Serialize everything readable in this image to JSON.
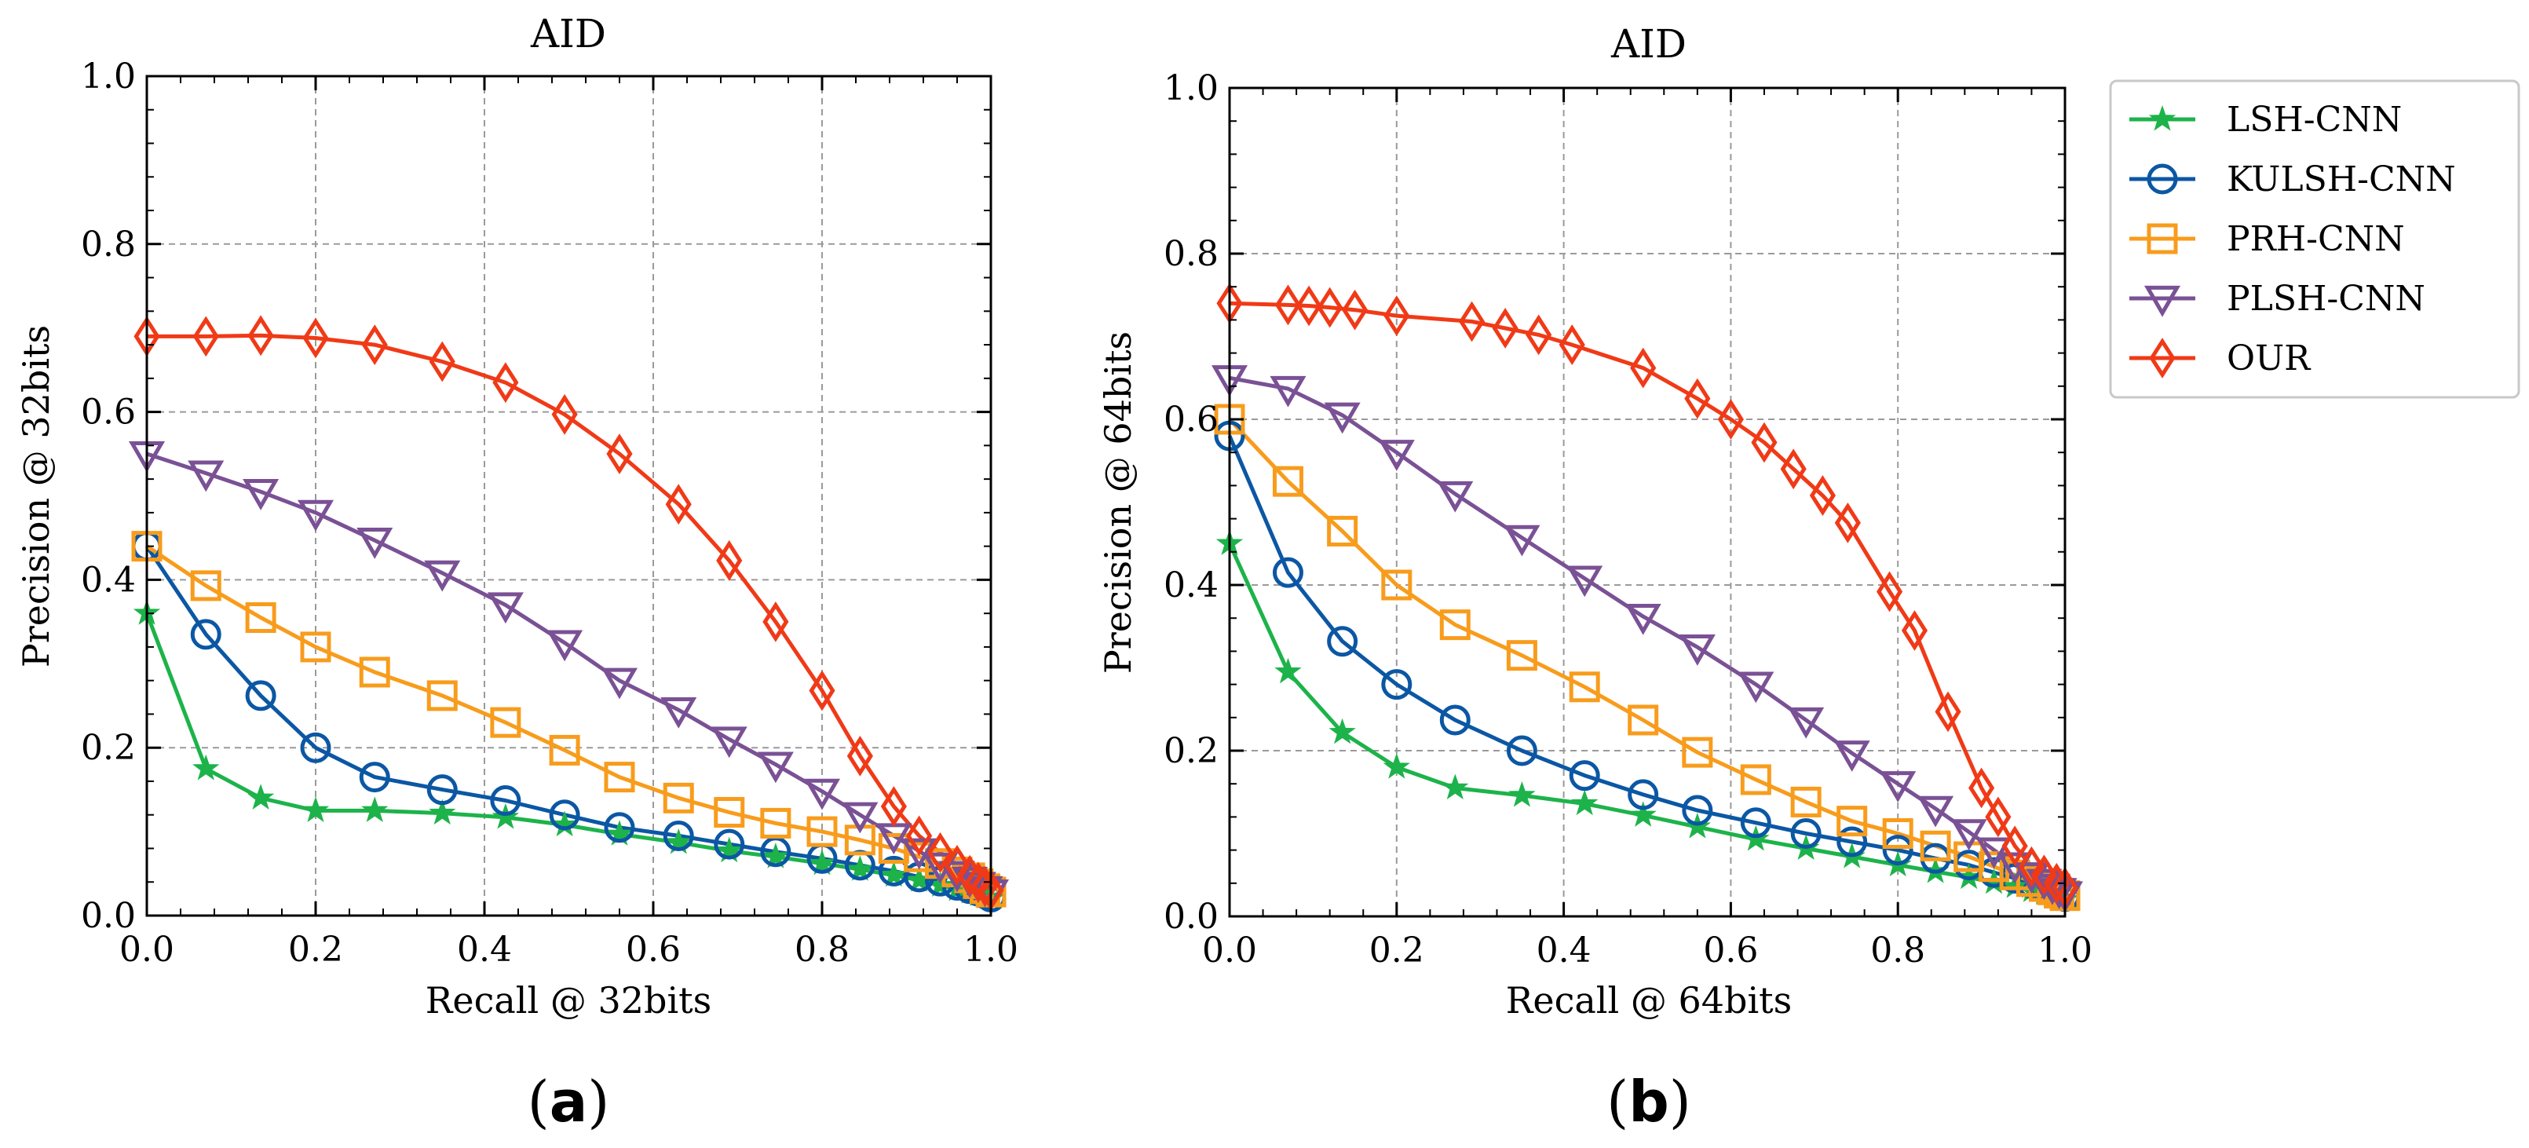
{
  "legend": {
    "entries": [
      "LSH-CNN",
      "KULSH-CNN",
      "PRH-CNN",
      "PLSH-CNN",
      "OUR"
    ]
  },
  "chart_data": [
    {
      "type": "line",
      "panel_label": "a",
      "title": "AID",
      "xlabel": "Recall @ 32bits",
      "ylabel": "Precision @ 32bits",
      "xlim": [
        0,
        1
      ],
      "ylim": [
        0,
        1
      ],
      "xticks": [
        0,
        0.2,
        0.4,
        0.6,
        0.8,
        1.0
      ],
      "yticks": [
        0,
        0.2,
        0.4,
        0.6,
        0.8,
        1.0
      ],
      "xtick_labels": [
        "0.0",
        "0.2",
        "0.4",
        "0.6",
        "0.8",
        "1.0"
      ],
      "ytick_labels": [
        "0.0",
        "0.2",
        "0.4",
        "0.6",
        "0.8",
        "1.0"
      ],
      "grid": true,
      "legend_position": "outside-right",
      "series": [
        {
          "name": "LSH-CNN",
          "color": "#1db34a",
          "marker": "star",
          "x": [
            0.0,
            0.07,
            0.135,
            0.2,
            0.27,
            0.35,
            0.425,
            0.495,
            0.56,
            0.63,
            0.69,
            0.745,
            0.8,
            0.845,
            0.885,
            0.915,
            0.94,
            0.96,
            0.975,
            0.985,
            0.993,
            1.0
          ],
          "y": [
            0.36,
            0.175,
            0.14,
            0.125,
            0.125,
            0.122,
            0.117,
            0.108,
            0.097,
            0.087,
            0.077,
            0.07,
            0.062,
            0.055,
            0.048,
            0.042,
            0.036,
            0.031,
            0.028,
            0.025,
            0.022,
            0.02
          ]
        },
        {
          "name": "KULSH-CNN",
          "color": "#0b57a4",
          "marker": "circle",
          "x": [
            0.0,
            0.07,
            0.135,
            0.2,
            0.27,
            0.35,
            0.425,
            0.495,
            0.56,
            0.63,
            0.69,
            0.745,
            0.8,
            0.845,
            0.885,
            0.915,
            0.94,
            0.96,
            0.975,
            0.985,
            0.993,
            1.0
          ],
          "y": [
            0.44,
            0.335,
            0.262,
            0.2,
            0.165,
            0.15,
            0.137,
            0.12,
            0.105,
            0.095,
            0.085,
            0.076,
            0.068,
            0.06,
            0.053,
            0.046,
            0.041,
            0.036,
            0.032,
            0.029,
            0.026,
            0.022
          ]
        },
        {
          "name": "PRH-CNN",
          "color": "#f89c1c",
          "marker": "square",
          "x": [
            0.0,
            0.07,
            0.135,
            0.2,
            0.27,
            0.35,
            0.425,
            0.495,
            0.56,
            0.63,
            0.69,
            0.745,
            0.8,
            0.845,
            0.885,
            0.915,
            0.94,
            0.96,
            0.975,
            0.985,
            0.993,
            1.0
          ],
          "y": [
            0.44,
            0.393,
            0.355,
            0.32,
            0.29,
            0.262,
            0.23,
            0.197,
            0.165,
            0.14,
            0.123,
            0.11,
            0.1,
            0.09,
            0.08,
            0.07,
            0.062,
            0.052,
            0.045,
            0.038,
            0.032,
            0.028
          ]
        },
        {
          "name": "PLSH-CNN",
          "color": "#7a5195",
          "marker": "triangle-down",
          "x": [
            0.0,
            0.07,
            0.135,
            0.2,
            0.27,
            0.35,
            0.425,
            0.495,
            0.56,
            0.63,
            0.69,
            0.745,
            0.8,
            0.845,
            0.885,
            0.915,
            0.94,
            0.96,
            0.975,
            0.985,
            0.993,
            1.0
          ],
          "y": [
            0.55,
            0.527,
            0.505,
            0.48,
            0.447,
            0.408,
            0.37,
            0.325,
            0.28,
            0.245,
            0.21,
            0.18,
            0.148,
            0.12,
            0.095,
            0.077,
            0.06,
            0.05,
            0.043,
            0.037,
            0.032,
            0.028
          ]
        },
        {
          "name": "OUR",
          "color": "#f03a17",
          "marker": "diamond",
          "x": [
            0.0,
            0.07,
            0.135,
            0.2,
            0.27,
            0.35,
            0.425,
            0.495,
            0.56,
            0.63,
            0.69,
            0.745,
            0.8,
            0.845,
            0.885,
            0.915,
            0.94,
            0.96,
            0.975,
            0.985,
            0.993,
            1.0
          ],
          "y": [
            0.69,
            0.69,
            0.691,
            0.688,
            0.68,
            0.66,
            0.635,
            0.597,
            0.55,
            0.49,
            0.423,
            0.35,
            0.268,
            0.19,
            0.13,
            0.095,
            0.075,
            0.06,
            0.048,
            0.04,
            0.035,
            0.03
          ]
        }
      ]
    },
    {
      "type": "line",
      "panel_label": "b",
      "title": "AID",
      "xlabel": "Recall @ 64bits",
      "ylabel": "Precision @ 64bits",
      "xlim": [
        0,
        1
      ],
      "ylim": [
        0,
        1
      ],
      "xticks": [
        0,
        0.2,
        0.4,
        0.6,
        0.8,
        1.0
      ],
      "yticks": [
        0,
        0.2,
        0.4,
        0.6,
        0.8,
        1.0
      ],
      "xtick_labels": [
        "0.0",
        "0.2",
        "0.4",
        "0.6",
        "0.8",
        "1.0"
      ],
      "ytick_labels": [
        "0.0",
        "0.2",
        "0.4",
        "0.6",
        "0.8",
        "1.0"
      ],
      "grid": true,
      "legend_position": "outside-right",
      "series": [
        {
          "name": "LSH-CNN",
          "color": "#1db34a",
          "marker": "star",
          "x": [
            0.0,
            0.07,
            0.135,
            0.2,
            0.27,
            0.35,
            0.425,
            0.495,
            0.56,
            0.63,
            0.69,
            0.745,
            0.8,
            0.845,
            0.885,
            0.915,
            0.94,
            0.96,
            0.975,
            0.985,
            0.993,
            1.0
          ],
          "y": [
            0.45,
            0.295,
            0.222,
            0.18,
            0.155,
            0.146,
            0.136,
            0.122,
            0.108,
            0.093,
            0.082,
            0.072,
            0.062,
            0.054,
            0.047,
            0.041,
            0.036,
            0.031,
            0.028,
            0.025,
            0.022,
            0.02
          ]
        },
        {
          "name": "KULSH-CNN",
          "color": "#0b57a4",
          "marker": "circle",
          "x": [
            0.0,
            0.07,
            0.135,
            0.2,
            0.27,
            0.35,
            0.425,
            0.495,
            0.56,
            0.63,
            0.69,
            0.745,
            0.8,
            0.845,
            0.885,
            0.915,
            0.94,
            0.96,
            0.975,
            0.985,
            0.993,
            1.0
          ],
          "y": [
            0.58,
            0.415,
            0.332,
            0.28,
            0.237,
            0.2,
            0.17,
            0.147,
            0.128,
            0.113,
            0.1,
            0.09,
            0.08,
            0.07,
            0.062,
            0.053,
            0.046,
            0.04,
            0.035,
            0.031,
            0.027,
            0.024
          ]
        },
        {
          "name": "PRH-CNN",
          "color": "#f89c1c",
          "marker": "square",
          "x": [
            0.0,
            0.07,
            0.135,
            0.2,
            0.27,
            0.35,
            0.425,
            0.495,
            0.56,
            0.63,
            0.69,
            0.745,
            0.8,
            0.845,
            0.885,
            0.915,
            0.94,
            0.96,
            0.975,
            0.985,
            0.993,
            1.0
          ],
          "y": [
            0.6,
            0.525,
            0.465,
            0.4,
            0.352,
            0.315,
            0.277,
            0.237,
            0.198,
            0.165,
            0.138,
            0.115,
            0.1,
            0.085,
            0.072,
            0.06,
            0.05,
            0.042,
            0.036,
            0.032,
            0.028,
            0.025
          ]
        },
        {
          "name": "PLSH-CNN",
          "color": "#7a5195",
          "marker": "triangle-down",
          "x": [
            0.0,
            0.07,
            0.135,
            0.2,
            0.27,
            0.35,
            0.425,
            0.495,
            0.56,
            0.63,
            0.69,
            0.745,
            0.8,
            0.845,
            0.885,
            0.915,
            0.94,
            0.96,
            0.975,
            0.985,
            0.993,
            1.0
          ],
          "y": [
            0.65,
            0.637,
            0.605,
            0.56,
            0.51,
            0.457,
            0.408,
            0.362,
            0.325,
            0.28,
            0.237,
            0.197,
            0.16,
            0.13,
            0.102,
            0.08,
            0.062,
            0.05,
            0.042,
            0.036,
            0.031,
            0.027
          ]
        },
        {
          "name": "OUR",
          "color": "#f03a17",
          "marker": "diamond",
          "x": [
            0.0,
            0.07,
            0.095,
            0.12,
            0.15,
            0.2,
            0.29,
            0.33,
            0.37,
            0.41,
            0.495,
            0.56,
            0.6,
            0.64,
            0.675,
            0.71,
            0.74,
            0.79,
            0.82,
            0.86,
            0.9,
            0.92,
            0.94,
            0.96,
            0.975,
            0.99,
            1.0
          ],
          "y": [
            0.74,
            0.738,
            0.737,
            0.735,
            0.732,
            0.725,
            0.718,
            0.71,
            0.702,
            0.69,
            0.662,
            0.625,
            0.6,
            0.572,
            0.54,
            0.508,
            0.475,
            0.392,
            0.345,
            0.247,
            0.155,
            0.12,
            0.085,
            0.06,
            0.05,
            0.04,
            0.035
          ]
        }
      ]
    }
  ]
}
